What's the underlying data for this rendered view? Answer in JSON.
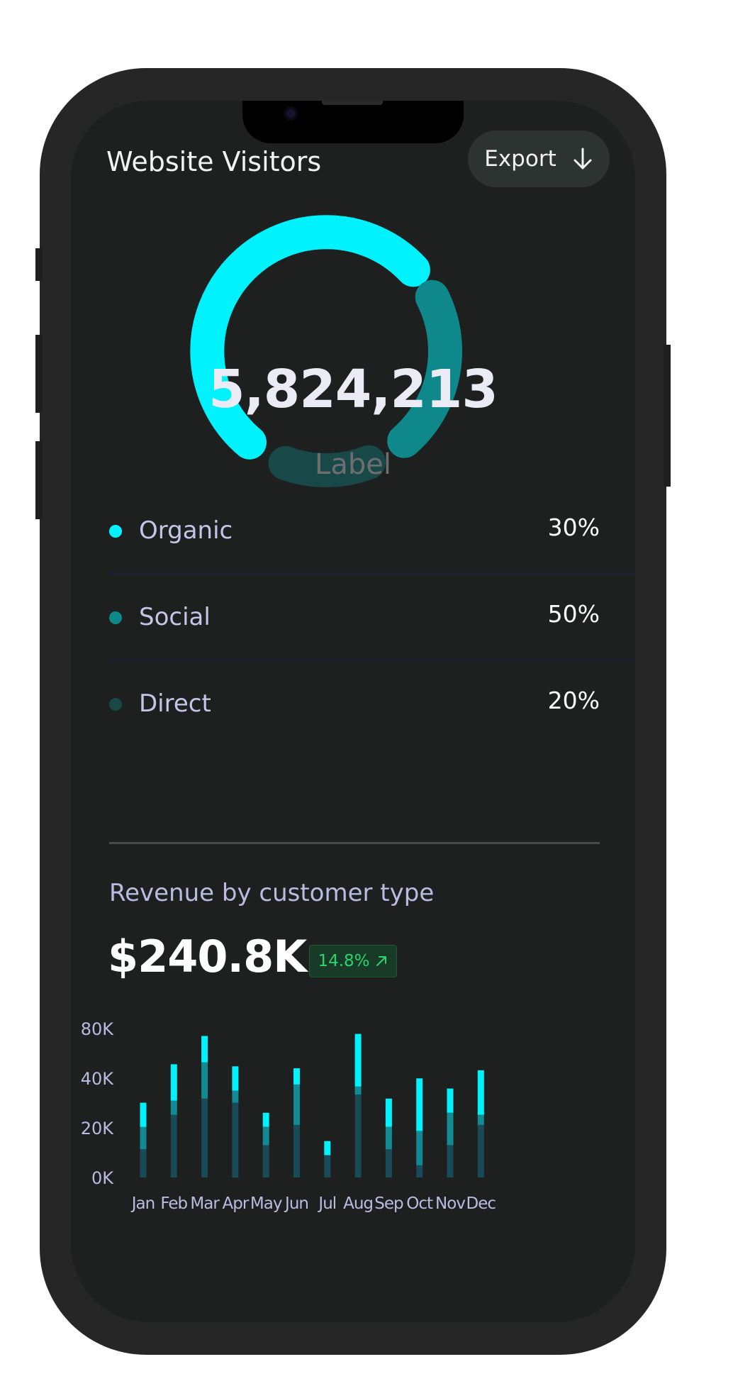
{
  "header": {
    "title": "Website Visitors",
    "export_label": "Export",
    "export_icon": "arrow-down-icon"
  },
  "visitors": {
    "total": "5,824,213",
    "label": "Label"
  },
  "sources": [
    {
      "name": "Organic",
      "percent": "30%",
      "color": "#00f2fd"
    },
    {
      "name": "Social",
      "percent": "50%",
      "color": "#0e888b"
    },
    {
      "name": "Direct",
      "percent": "20%",
      "color": "#184848"
    }
  ],
  "revenue": {
    "title": "Revenue by customer type",
    "value": "$240.8K",
    "change": "14.8%",
    "change_icon": "arrow-up-right-icon"
  },
  "colors": {
    "accent": "#00f2fd",
    "mid": "#0e888b",
    "dark": "#184848",
    "positive": "#2dd36f"
  },
  "chart_data": {
    "type": "bar",
    "stacked": true,
    "categories": [
      "Jan",
      "Feb",
      "Mar",
      "Apr",
      "May",
      "Jun",
      "Jul",
      "Aug",
      "Sep",
      "Oct",
      "Nov",
      "Dec"
    ],
    "y_ticks": [
      "0K",
      "20K",
      "40K",
      "80K"
    ],
    "series": [
      {
        "values": [
          14,
          31,
          39,
          37,
          16,
          26,
          11,
          41,
          14,
          6,
          16,
          26
        ],
        "color": "#184a58"
      },
      {
        "values": [
          11,
          7,
          18,
          6,
          9,
          20,
          0,
          4,
          11,
          17,
          16,
          5
        ],
        "color": "#128a93"
      },
      {
        "values": [
          12,
          18,
          13,
          12,
          7,
          8,
          7,
          26,
          14,
          26,
          12,
          22
        ],
        "color": "#00f2fd"
      }
    ]
  }
}
